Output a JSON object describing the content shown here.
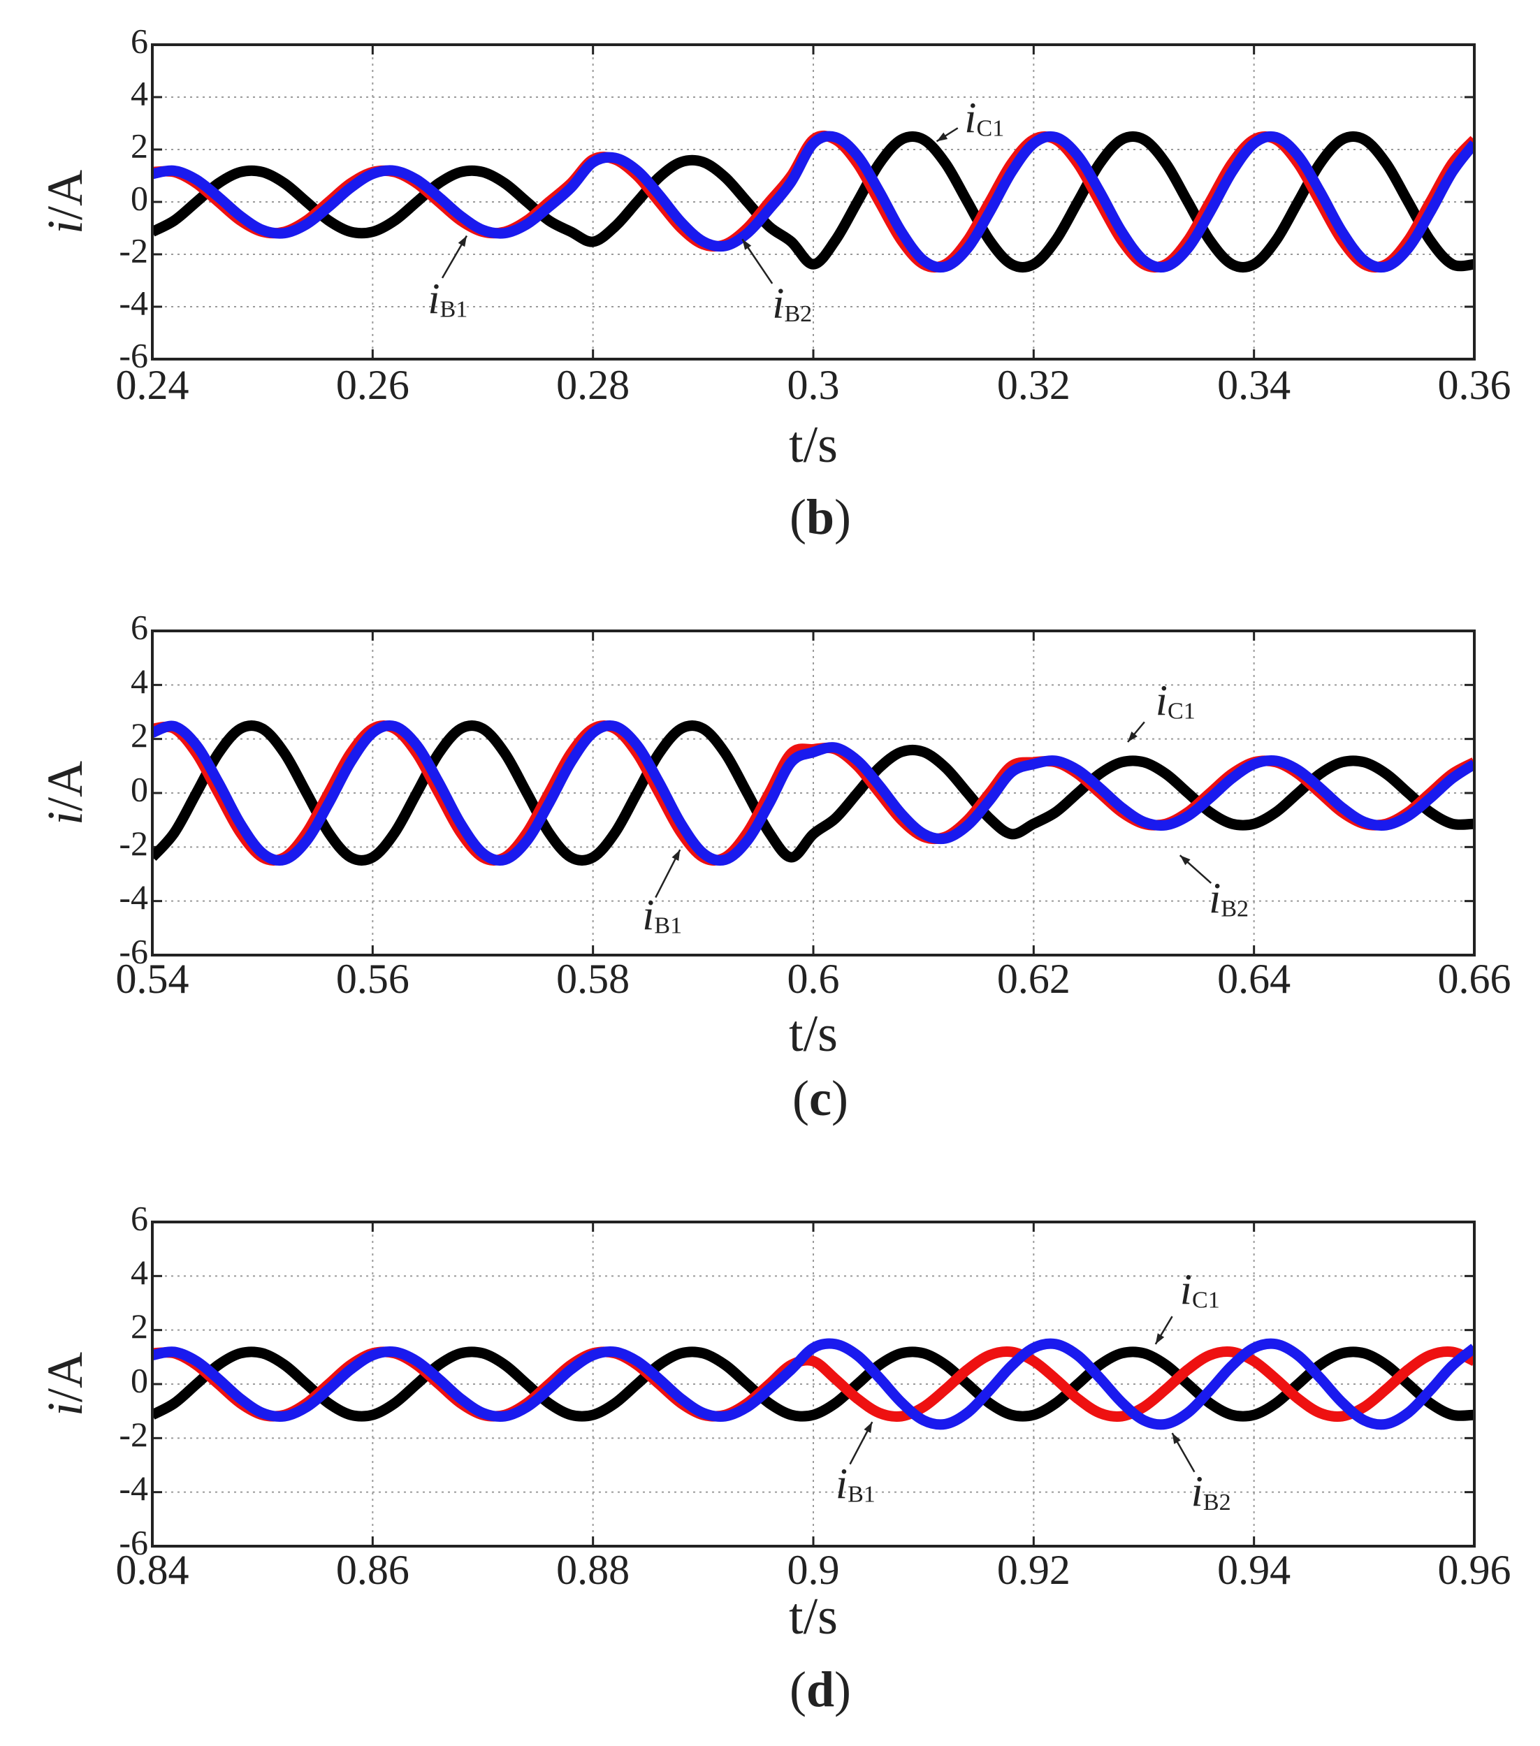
{
  "chart_data": [
    {
      "type": "line",
      "caption": "(b)",
      "x_label": "t/s",
      "y_label": "i/A",
      "xlim": [
        0.24,
        0.36
      ],
      "xticks": [
        0.24,
        0.26,
        0.28,
        0.3,
        0.32,
        0.34,
        0.36
      ],
      "ylim": [
        -6,
        6
      ],
      "yticks": [
        -6,
        -4,
        -2,
        0,
        2,
        4,
        6
      ],
      "grid": true,
      "x": [
        0.24,
        0.242,
        0.244,
        0.246,
        0.248,
        0.25,
        0.252,
        0.254,
        0.256,
        0.258,
        0.26,
        0.262,
        0.264,
        0.266,
        0.268,
        0.27,
        0.272,
        0.274,
        0.276,
        0.278,
        0.28,
        0.282,
        0.284,
        0.286,
        0.288,
        0.29,
        0.292,
        0.294,
        0.296,
        0.298,
        0.3,
        0.302,
        0.304,
        0.306,
        0.308,
        0.31,
        0.312,
        0.314,
        0.316,
        0.318,
        0.32,
        0.322,
        0.324,
        0.326,
        0.328,
        0.33,
        0.332,
        0.334,
        0.336,
        0.338,
        0.34,
        0.342,
        0.344,
        0.346,
        0.348,
        0.35,
        0.352,
        0.354,
        0.356,
        0.358,
        0.36
      ],
      "series": [
        {
          "name": "iC1",
          "color": "#000000",
          "values": [
            -1.14,
            -0.71,
            0,
            0.71,
            1.14,
            1.14,
            0.71,
            0,
            -0.71,
            -1.14,
            -1.14,
            -0.71,
            0,
            0.71,
            1.14,
            1.14,
            0.71,
            0,
            -0.71,
            -1.14,
            -1.52,
            -0.94,
            0,
            0.94,
            1.52,
            1.52,
            0.94,
            0,
            -0.94,
            -1.52,
            -2.38,
            -1.47,
            0,
            1.47,
            2.38,
            2.38,
            1.47,
            0,
            -1.47,
            -2.38,
            -2.38,
            -1.47,
            0,
            1.47,
            2.38,
            2.38,
            1.47,
            0,
            -1.47,
            -2.38,
            -2.38,
            -1.47,
            0,
            1.47,
            2.38,
            2.38,
            1.47,
            0,
            -1.47,
            -2.38,
            -2.38
          ]
        },
        {
          "name": "iB1",
          "color": "#ee1111",
          "values": [
            1.14,
            1.14,
            0.71,
            0,
            -0.71,
            -1.14,
            -1.14,
            -0.71,
            0,
            0.71,
            1.14,
            1.14,
            0.71,
            0,
            -0.71,
            -1.14,
            -1.14,
            -0.71,
            0,
            0.71,
            1.62,
            1.62,
            1,
            0,
            -1,
            -1.62,
            -1.62,
            -1,
            0,
            1,
            2.38,
            2.38,
            1.47,
            0,
            -1.47,
            -2.38,
            -2.38,
            -1.47,
            0,
            1.47,
            2.38,
            2.38,
            1.47,
            0,
            -1.47,
            -2.38,
            -2.38,
            -1.47,
            0,
            1.47,
            2.38,
            2.38,
            1.47,
            0,
            -1.47,
            -2.38,
            -2.38,
            -1.47,
            0,
            1.47,
            2.38
          ]
        },
        {
          "name": "iB2",
          "color": "#1a1aee",
          "values": [
            1.07,
            1.19,
            0.85,
            0.19,
            -0.54,
            -1.07,
            -1.19,
            -0.85,
            -0.19,
            0.54,
            1.07,
            1.19,
            0.85,
            0.19,
            -0.54,
            -1.07,
            -1.19,
            -0.85,
            -0.19,
            0.54,
            1.51,
            1.68,
            1.2,
            0.27,
            -0.77,
            -1.51,
            -1.68,
            -1.2,
            -0.27,
            0.77,
            2.23,
            2.47,
            1.77,
            0.39,
            -1.14,
            -2.23,
            -2.47,
            -1.77,
            -0.39,
            1.14,
            2.23,
            2.47,
            1.77,
            0.39,
            -1.14,
            -2.23,
            -2.47,
            -1.77,
            -0.39,
            1.14,
            2.23,
            2.47,
            1.77,
            0.39,
            -1.14,
            -2.23,
            -2.47,
            -1.77,
            -0.39,
            1.14,
            2.23
          ]
        }
      ]
    },
    {
      "type": "line",
      "caption": "(c)",
      "x_label": "t/s",
      "y_label": "i/A",
      "xlim": [
        0.54,
        0.66
      ],
      "xticks": [
        0.54,
        0.56,
        0.58,
        0.6,
        0.62,
        0.64,
        0.66
      ],
      "ylim": [
        -6,
        6
      ],
      "yticks": [
        -6,
        -4,
        -2,
        0,
        2,
        4,
        6
      ],
      "grid": true,
      "x": [
        0.54,
        0.542,
        0.544,
        0.546,
        0.548,
        0.55,
        0.552,
        0.554,
        0.556,
        0.558,
        0.56,
        0.562,
        0.564,
        0.566,
        0.568,
        0.57,
        0.572,
        0.574,
        0.576,
        0.578,
        0.58,
        0.582,
        0.584,
        0.586,
        0.588,
        0.59,
        0.592,
        0.594,
        0.596,
        0.598,
        0.6,
        0.602,
        0.604,
        0.606,
        0.608,
        0.61,
        0.612,
        0.614,
        0.616,
        0.618,
        0.62,
        0.622,
        0.624,
        0.626,
        0.628,
        0.63,
        0.632,
        0.634,
        0.636,
        0.638,
        0.64,
        0.642,
        0.644,
        0.646,
        0.648,
        0.65,
        0.652,
        0.654,
        0.656,
        0.658,
        0.66
      ],
      "series": [
        {
          "name": "iC1",
          "color": "#000000",
          "values": [
            -2.38,
            -1.47,
            0,
            1.47,
            2.38,
            2.38,
            1.47,
            0,
            -1.47,
            -2.38,
            -2.38,
            -1.47,
            0,
            1.47,
            2.38,
            2.38,
            1.47,
            0,
            -1.47,
            -2.38,
            -2.38,
            -1.47,
            0,
            1.47,
            2.38,
            2.38,
            1.47,
            0,
            -1.47,
            -2.38,
            -1.52,
            -0.94,
            0,
            0.94,
            1.52,
            1.52,
            0.94,
            0,
            -0.94,
            -1.52,
            -1.14,
            -0.71,
            0,
            0.71,
            1.14,
            1.14,
            0.71,
            0,
            -0.71,
            -1.14,
            -1.14,
            -0.71,
            0,
            0.71,
            1.14,
            1.14,
            0.71,
            0,
            -0.71,
            -1.14,
            -1.14
          ]
        },
        {
          "name": "iB1",
          "color": "#ee1111",
          "values": [
            2.38,
            2.38,
            1.47,
            0,
            -1.47,
            -2.38,
            -2.38,
            -1.47,
            0,
            1.47,
            2.38,
            2.38,
            1.47,
            0,
            -1.47,
            -2.38,
            -2.38,
            -1.47,
            0,
            1.47,
            2.38,
            2.38,
            1.47,
            0,
            -1.47,
            -2.38,
            -2.38,
            -1.47,
            0,
            1.47,
            1.62,
            1.62,
            1,
            0,
            -1,
            -1.62,
            -1.62,
            -1,
            0,
            1,
            1.14,
            1.14,
            0.71,
            0,
            -0.71,
            -1.14,
            -1.14,
            -0.71,
            0,
            0.71,
            1.14,
            1.14,
            0.71,
            0,
            -0.71,
            -1.14,
            -1.14,
            -0.71,
            0,
            0.71,
            1.14
          ]
        },
        {
          "name": "iB2",
          "color": "#1a1aee",
          "values": [
            2.23,
            2.47,
            1.77,
            0.39,
            -1.14,
            -2.23,
            -2.47,
            -1.77,
            -0.39,
            1.14,
            2.23,
            2.47,
            1.77,
            0.39,
            -1.14,
            -2.23,
            -2.47,
            -1.77,
            -0.39,
            1.14,
            2.23,
            2.47,
            1.77,
            0.39,
            -1.14,
            -2.23,
            -2.47,
            -1.77,
            -0.39,
            1.14,
            1.51,
            1.68,
            1.2,
            0.27,
            -0.77,
            -1.51,
            -1.68,
            -1.2,
            -0.27,
            0.77,
            1.07,
            1.19,
            0.85,
            0.19,
            -0.54,
            -1.07,
            -1.19,
            -0.85,
            -0.19,
            0.54,
            1.07,
            1.19,
            0.85,
            0.19,
            -0.54,
            -1.07,
            -1.19,
            -0.85,
            -0.19,
            0.54,
            1.07
          ]
        }
      ]
    },
    {
      "type": "line",
      "caption": "(d)",
      "x_label": "t/s",
      "y_label": "i/A",
      "xlim": [
        0.84,
        0.96
      ],
      "xticks": [
        0.84,
        0.86,
        0.88,
        0.9,
        0.92,
        0.94,
        0.96
      ],
      "ylim": [
        -6,
        6
      ],
      "yticks": [
        -6,
        -4,
        -2,
        0,
        2,
        4,
        6
      ],
      "grid": true,
      "x": [
        0.84,
        0.842,
        0.844,
        0.846,
        0.848,
        0.85,
        0.852,
        0.854,
        0.856,
        0.858,
        0.86,
        0.862,
        0.864,
        0.866,
        0.868,
        0.87,
        0.872,
        0.874,
        0.876,
        0.878,
        0.88,
        0.882,
        0.884,
        0.886,
        0.888,
        0.89,
        0.892,
        0.894,
        0.896,
        0.898,
        0.9,
        0.902,
        0.904,
        0.906,
        0.908,
        0.91,
        0.912,
        0.914,
        0.916,
        0.918,
        0.92,
        0.922,
        0.924,
        0.926,
        0.928,
        0.93,
        0.932,
        0.934,
        0.936,
        0.938,
        0.94,
        0.942,
        0.944,
        0.946,
        0.948,
        0.95,
        0.952,
        0.954,
        0.956,
        0.958,
        0.96
      ],
      "series": [
        {
          "name": "iC1",
          "color": "#000000",
          "values": [
            -1.14,
            -0.71,
            0,
            0.71,
            1.14,
            1.14,
            0.71,
            0,
            -0.71,
            -1.14,
            -1.14,
            -0.71,
            0,
            0.71,
            1.14,
            1.14,
            0.71,
            0,
            -0.71,
            -1.14,
            -1.14,
            -0.71,
            0,
            0.71,
            1.14,
            1.14,
            0.71,
            0,
            -0.71,
            -1.14,
            -1.14,
            -0.71,
            0,
            0.71,
            1.14,
            1.14,
            0.71,
            0,
            -0.71,
            -1.14,
            -1.14,
            -0.71,
            0,
            0.71,
            1.14,
            1.14,
            0.71,
            0,
            -0.71,
            -1.14,
            -1.14,
            -0.71,
            0,
            0.71,
            1.14,
            1.14,
            0.71,
            0,
            -0.71,
            -1.14,
            -1.14
          ]
        },
        {
          "name": "iB1",
          "color": "#ee1111",
          "values": [
            1.14,
            1.14,
            0.71,
            0,
            -0.71,
            -1.14,
            -1.14,
            -0.71,
            0,
            0.71,
            1.14,
            1.14,
            0.71,
            0,
            -0.71,
            -1.14,
            -1.14,
            -0.71,
            0,
            0.71,
            1.14,
            1.14,
            0.71,
            0,
            -0.71,
            -1.14,
            -1.14,
            -0.71,
            0,
            0.71,
            0.85,
            0.19,
            -0.54,
            -1.07,
            -1.19,
            -0.85,
            -0.19,
            0.54,
            1.07,
            1.19,
            0.85,
            0.19,
            -0.54,
            -1.07,
            -1.19,
            -0.85,
            -0.19,
            0.54,
            1.07,
            1.19,
            0.85,
            0.19,
            -0.54,
            -1.07,
            -1.19,
            -0.85,
            -0.19,
            0.54,
            1.07,
            1.19,
            0.85
          ]
        },
        {
          "name": "iB2",
          "color": "#1a1aee",
          "values": [
            1.07,
            1.19,
            0.85,
            0.19,
            -0.54,
            -1.07,
            -1.19,
            -0.85,
            -0.19,
            0.54,
            1.07,
            1.19,
            0.85,
            0.19,
            -0.54,
            -1.07,
            -1.19,
            -0.85,
            -0.19,
            0.54,
            1.07,
            1.19,
            0.85,
            0.19,
            -0.54,
            -1.07,
            -1.19,
            -0.85,
            -0.19,
            0.54,
            1.34,
            1.48,
            1.06,
            0.23,
            -0.68,
            -1.34,
            -1.48,
            -1.06,
            -0.23,
            0.68,
            1.34,
            1.48,
            1.06,
            0.23,
            -0.68,
            -1.34,
            -1.48,
            -1.06,
            -0.23,
            0.68,
            1.34,
            1.48,
            1.06,
            0.23,
            -0.68,
            -1.34,
            -1.48,
            -1.06,
            -0.23,
            0.68,
            1.34
          ]
        }
      ]
    }
  ]
}
